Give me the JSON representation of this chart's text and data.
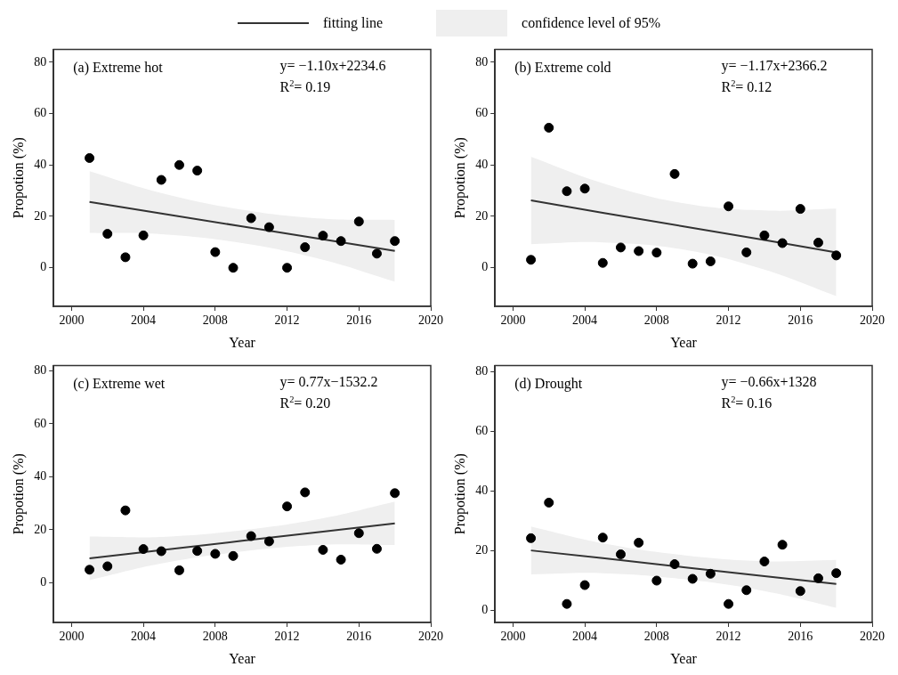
{
  "chart_data": [
    {
      "type": "scatter",
      "title": "(a) Extreme hot",
      "xlabel": "Year",
      "ylabel": "Propotion (%)",
      "annotations": [
        "y= −1.10x+2234.6",
        "R$^{2}$= 0.19",
        {
          "text": "confidence level of 95%"
        }
      ],
      "legend": "top",
      "xlim": [
        1999,
        2020
      ],
      "xticks": [
        2000,
        2004,
        2008,
        2012,
        2016,
        2020
      ],
      "ylim": [
        -15,
        85
      ],
      "yticks": [
        0,
        20,
        40,
        60,
        80
      ],
      "x": [
        2001,
        2002,
        2003,
        2004,
        2005,
        2006,
        2007,
        2008,
        2009,
        2010,
        2011,
        2012,
        2013,
        2014,
        2015,
        2016,
        2017,
        2018
      ],
      "series": [
        {
          "type": "line",
          "name": "fitting line",
          "color": "#333333",
          "x": [
            2001,
            2005,
            2009.5,
            2014,
            2018
          ],
          "values": [
            25.6,
            21.1,
            16.1,
            11.1,
            6.6
          ],
          "upper": [
            37.6,
            29.1,
            22.6,
            19.1,
            18.6
          ],
          "lower": [
            13.6,
            13.1,
            9.6,
            3.1,
            -5.4
          ]
        },
        {
          "type": "scatter",
          "marker": "circle",
          "color": "#000000",
          "values": [
            42.7,
            13.2,
            4.1,
            12.6,
            34.2,
            40,
            37.8,
            6.1,
            0,
            19.3,
            15.8,
            0,
            8,
            12.5,
            10.4,
            18,
            5.5,
            10.4
          ]
        }
      ]
    },
    {
      "type": "scatter",
      "title": "(b) Extreme cold",
      "xlabel": "Year",
      "ylabel": "Propotion (%)",
      "annotations": [
        "y= −1.17x+2366.2",
        "R$^{2}$= 0.12"
      ],
      "xlim": [
        1999,
        2020
      ],
      "xticks": [
        2000,
        2004,
        2008,
        2012,
        2016,
        2020
      ],
      "ylim": [
        -15,
        85
      ],
      "yticks": [
        0,
        20,
        40,
        60,
        80
      ],
      "x": [
        2001,
        2002,
        2003,
        2004,
        2005,
        2006,
        2007,
        2008,
        2009,
        2010,
        2011,
        2012,
        2013,
        2014,
        2015,
        2016,
        2017,
        2018
      ],
      "series": [
        {
          "type": "line",
          "color": "#333333",
          "x": [
            2001,
            2005,
            2009.5,
            2014,
            2018
          ],
          "values": [
            26.2,
            21.4,
            16.1,
            10.8,
            6
          ],
          "upper": [
            43.2,
            32.9,
            25.1,
            22.3,
            23
          ],
          "lower": [
            9.2,
            9.9,
            7.1,
            -0.7,
            -11
          ]
        },
        {
          "type": "scatter",
          "marker": "circle",
          "color": "#000000",
          "values": [
            3.1,
            54.5,
            29.8,
            30.8,
            1.9,
            7.9,
            6.5,
            5.9,
            36.5,
            1.6,
            2.5,
            23.9,
            6,
            12.6,
            9.6,
            22.9,
            9.8,
            4.8
          ]
        }
      ]
    },
    {
      "type": "scatter",
      "title": "(c) Extreme wet",
      "xlabel": "Year",
      "ylabel": "Propotion (%)",
      "annotations": [
        "y= 0.77x−1532.2",
        "R$^{2}$= 0.20"
      ],
      "xlim": [
        1999,
        2020
      ],
      "xticks": [
        2000,
        2004,
        2008,
        2012,
        2016,
        2020
      ],
      "ylim": [
        -15,
        82
      ],
      "yticks": [
        0,
        20,
        40,
        60,
        80
      ],
      "x": [
        2001,
        2002,
        2003,
        2004,
        2005,
        2006,
        2007,
        2008,
        2009,
        2010,
        2011,
        2012,
        2013,
        2014,
        2015,
        2016,
        2017,
        2018
      ],
      "series": [
        {
          "type": "line",
          "color": "#333333",
          "x": [
            2001,
            2005,
            2009.5,
            2014,
            2018
          ],
          "values": [
            9.2,
            12.3,
            15.8,
            19.3,
            22.4
          ],
          "upper": [
            17.4,
            17.3,
            19.8,
            24.3,
            30.6
          ],
          "lower": [
            1,
            7.3,
            11.8,
            14.3,
            14.2
          ]
        },
        {
          "type": "scatter",
          "marker": "circle",
          "color": "#000000",
          "values": [
            4.9,
            6.2,
            27.3,
            12.7,
            11.9,
            4.7,
            12,
            10.9,
            10.1,
            17.6,
            15.6,
            28.8,
            34.1,
            12.4,
            8.7,
            18.7,
            12.8,
            33.8
          ]
        }
      ]
    },
    {
      "type": "scatter",
      "title": "(d) Drought",
      "xlabel": "Year",
      "ylabel": "Propotion (%)",
      "annotations": [
        "y= −0.66x+1328",
        "R$^{2}$= 0.16"
      ],
      "xlim": [
        1999,
        2020
      ],
      "xticks": [
        2000,
        2004,
        2008,
        2012,
        2016,
        2020
      ],
      "ylim": [
        -4,
        82
      ],
      "yticks": [
        0,
        20,
        40,
        60,
        80
      ],
      "x": [
        2001,
        2002,
        2003,
        2004,
        2005,
        2006,
        2007,
        2008,
        2009,
        2010,
        2011,
        2012,
        2013,
        2014,
        2015,
        2016,
        2017,
        2018
      ],
      "series": [
        {
          "type": "line",
          "color": "#333333",
          "x": [
            2001,
            2005,
            2009.5,
            2014,
            2018
          ],
          "values": [
            20.1,
            17.5,
            14.5,
            11.5,
            8.9
          ],
          "upper": [
            28.1,
            22.5,
            18.5,
            16.5,
            16.9
          ],
          "lower": [
            12.1,
            12.5,
            10.5,
            6.5,
            0.9
          ]
        },
        {
          "type": "scatter",
          "marker": "circle",
          "color": "#000000",
          "values": [
            24.2,
            36.1,
            2.2,
            8.5,
            24.4,
            18.8,
            22.7,
            10,
            15.5,
            10.6,
            12.3,
            2.2,
            6.8,
            16.4,
            22,
            6.5,
            10.8,
            12.5
          ]
        }
      ]
    }
  ]
}
